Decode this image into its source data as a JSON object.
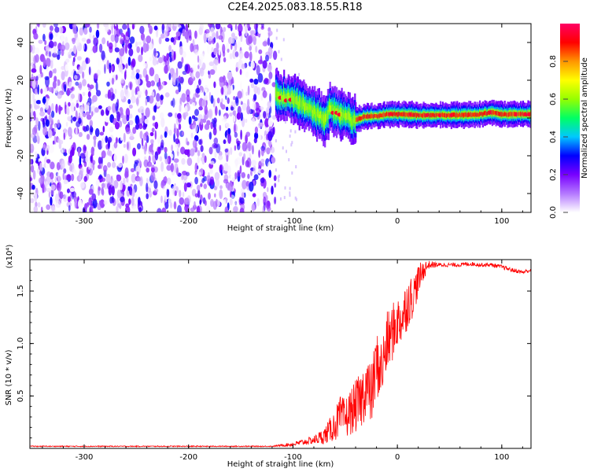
{
  "title": "C2E4.2025.083.18.55.R18",
  "chart_data": [
    {
      "type": "heatmap",
      "xlabel": "Height of straight line (km)",
      "ylabel": "Frequency (Hz)",
      "xlim": [
        -352,
        128
      ],
      "ylim": [
        -50,
        50
      ],
      "xticks": [
        -300,
        -200,
        -100,
        0,
        100
      ],
      "yticks": [
        -40,
        -20,
        0,
        20,
        40
      ],
      "colorbar": {
        "label": "Normalized spectral amplitude",
        "range": [
          0,
          1
        ],
        "ticks": [
          "0.0",
          "0.2",
          "0.4",
          "0.6",
          "0.8"
        ],
        "colormap": [
          "#ffffff",
          "#b478ff",
          "#7800ff",
          "#0000ff",
          "#00c8ff",
          "#00ff64",
          "#96ff00",
          "#ffff00",
          "#ff9600",
          "#ff0000",
          "#ff0064"
        ]
      },
      "noise_region": {
        "x_range": [
          -352,
          -117
        ],
        "y_range": [
          -50,
          50
        ]
      },
      "signal_ridge": {
        "x": [
          -117,
          -110,
          -100,
          -95,
          -90,
          -85,
          -80,
          -75,
          -70,
          -65,
          -60,
          -55,
          -50,
          -45,
          -40,
          -35,
          -30,
          -20,
          -10,
          0,
          20,
          40,
          60,
          80,
          90,
          100,
          110,
          128
        ],
        "freq": [
          12,
          11,
          10,
          8,
          7,
          5,
          3,
          1,
          -1,
          5,
          3,
          2,
          1,
          -1,
          -1,
          0,
          1,
          1,
          2,
          2,
          1.5,
          1.5,
          1.5,
          2,
          3,
          2,
          2,
          2
        ],
        "peak_amplitude": 0.9
      }
    },
    {
      "type": "line",
      "xlabel": "Height of straight line (km)",
      "ylabel": "SNR (10 * v/v)",
      "y_multiplier": "(x10⁴)",
      "xlim": [
        -352,
        128
      ],
      "ylim": [
        0,
        1.8
      ],
      "xticks": [
        -300,
        -200,
        -100,
        0,
        100
      ],
      "yticks": [
        "0.5",
        "1.0",
        "1.5"
      ],
      "ytick_values": [
        0.5,
        1.0,
        1.5
      ],
      "color": "#ff0000",
      "series": [
        {
          "x": [
            -352,
            -120,
            -100,
            -90,
            -80,
            -70,
            -60,
            -55,
            -50,
            -45,
            -40,
            -35,
            -30,
            -25,
            -20,
            -15,
            -10,
            -5,
            0,
            5,
            10,
            15,
            20,
            25,
            30,
            40,
            50,
            60,
            70,
            80,
            90,
            100,
            110,
            120,
            128
          ],
          "y": [
            0.02,
            0.02,
            0.04,
            0.06,
            0.08,
            0.12,
            0.22,
            0.3,
            0.28,
            0.35,
            0.4,
            0.45,
            0.6,
            0.5,
            0.8,
            0.75,
            1.0,
            1.1,
            1.2,
            1.25,
            1.4,
            1.45,
            1.6,
            1.7,
            1.75,
            1.75,
            1.75,
            1.75,
            1.76,
            1.75,
            1.75,
            1.73,
            1.7,
            1.68,
            1.7
          ],
          "noise_amplitude": [
            0.005,
            0.005,
            0.02,
            0.03,
            0.04,
            0.08,
            0.15,
            0.2,
            0.2,
            0.22,
            0.25,
            0.28,
            0.3,
            0.3,
            0.32,
            0.3,
            0.3,
            0.28,
            0.25,
            0.25,
            0.25,
            0.2,
            0.15,
            0.1,
            0.04,
            0.02,
            0.02,
            0.02,
            0.02,
            0.02,
            0.02,
            0.02,
            0.02,
            0.02,
            0.02
          ]
        }
      ]
    }
  ]
}
